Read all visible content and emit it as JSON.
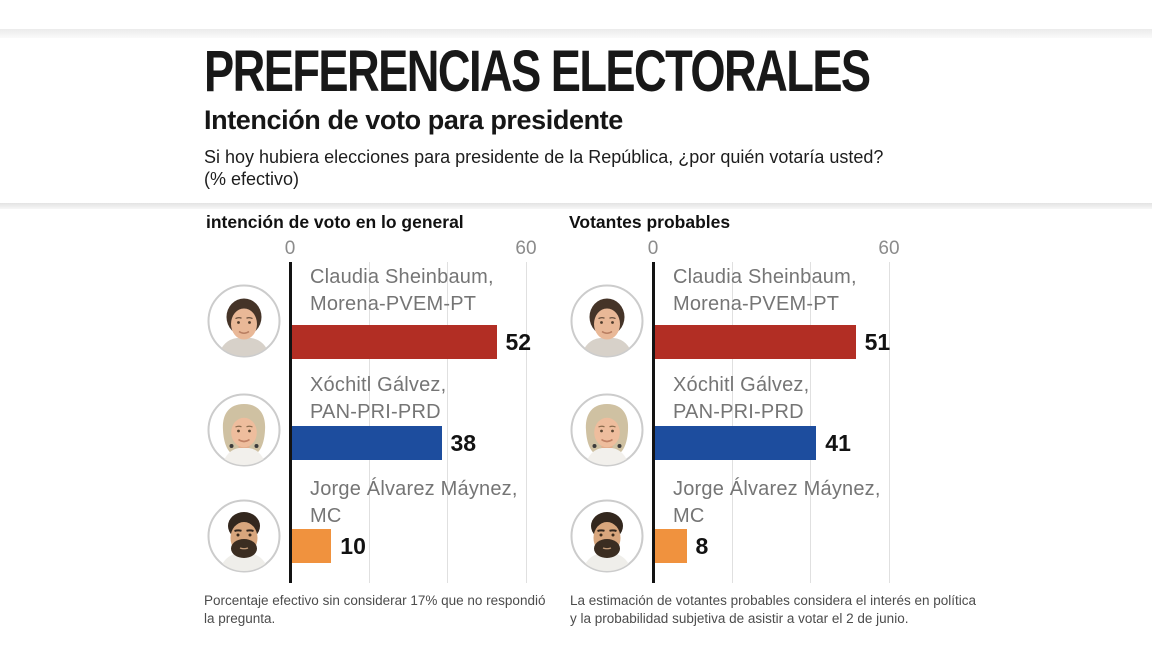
{
  "header": {
    "title": "PREFERENCIAS ELECTORALES",
    "subtitle": "Intención de voto para presidente",
    "question": "Si hoy hubiera elecciones para presidente de la República, ¿por quién votaría usted?  (% efectivo)"
  },
  "colors": {
    "morena_red": "#b22e24",
    "pan_blue": "#1d4d9e",
    "mc_orange": "#f0923e",
    "axis_black": "#131313",
    "gridline_gray": "#e0e0e0",
    "label_gray": "#757575"
  },
  "chart_data": [
    {
      "type": "bar",
      "orientation": "horizontal",
      "title": "intención de voto en lo general",
      "xlim": [
        0,
        60
      ],
      "tick_labels": [
        "0",
        "60"
      ],
      "gridline_values": [
        20,
        40,
        60
      ],
      "categories": [
        "Claudia Sheinbaum, Morena-PVEM-PT",
        "Xóchitl Gálvez, PAN-PRI-PRD",
        "Jorge Álvarez Máynez, MC"
      ],
      "values": [
        52,
        38,
        10
      ],
      "rows": [
        {
          "name_line1": "Claudia Sheinbaum,",
          "name_line2": "Morena-PVEM-PT",
          "value": 52,
          "color": "#b22e24"
        },
        {
          "name_line1": "Xóchitl Gálvez,",
          "name_line2": "PAN-PRI-PRD",
          "value": 38,
          "color": "#1d4d9e"
        },
        {
          "name_line1": "Jorge Álvarez Máynez,",
          "name_line2": "MC",
          "value": 10,
          "color": "#f0923e"
        }
      ],
      "footnote": "Porcentaje efectivo sin considerar 17% que no respondió la pregunta."
    },
    {
      "type": "bar",
      "orientation": "horizontal",
      "title": "Votantes probables",
      "xlim": [
        0,
        60
      ],
      "tick_labels": [
        "0",
        "60"
      ],
      "gridline_values": [
        20,
        40,
        60
      ],
      "categories": [
        "Claudia Sheinbaum, Morena-PVEM-PT",
        "Xóchitl Gálvez, PAN-PRI-PRD",
        "Jorge Álvarez Máynez, MC"
      ],
      "values": [
        51,
        41,
        8
      ],
      "rows": [
        {
          "name_line1": "Claudia Sheinbaum,",
          "name_line2": "Morena-PVEM-PT",
          "value": 51,
          "color": "#b22e24"
        },
        {
          "name_line1": "Xóchitl Gálvez,",
          "name_line2": "PAN-PRI-PRD",
          "value": 41,
          "color": "#1d4d9e"
        },
        {
          "name_line1": "Jorge Álvarez Máynez,",
          "name_line2": "MC",
          "value": 8,
          "color": "#f0923e"
        }
      ],
      "footnote": "La estimación de votantes probables considera el interés en política y la probabilidad subjetiva de asistir a votar el 2 de junio."
    }
  ]
}
